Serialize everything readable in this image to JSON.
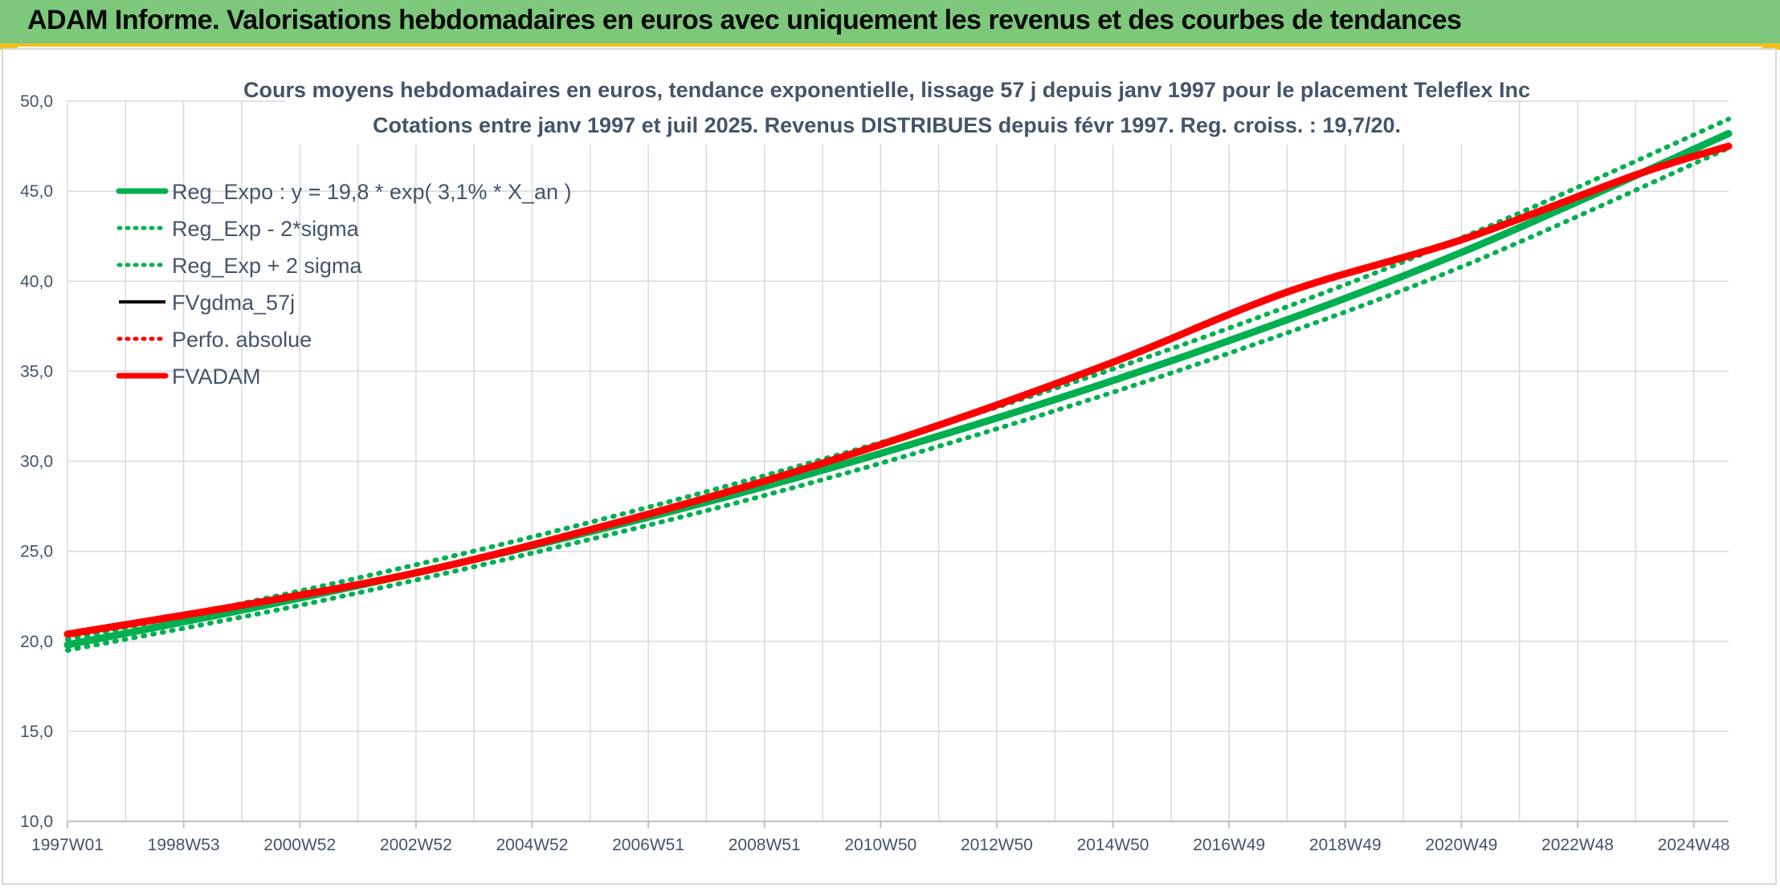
{
  "header": {
    "title": "ADAM Informe. Valorisations hebdomadaires en euros avec uniquement les revenus et des courbes de tendances"
  },
  "colors": {
    "header_bg": "#7dc87a",
    "accent": "#f0c020",
    "reg_expo": "#00b050",
    "fvadam": "#ff0000",
    "fvgdma": "#000000",
    "text": "#44546a",
    "grid": "#d9d9d9"
  },
  "chart_data": {
    "type": "line",
    "title_line1": "Cours moyens hebdomadaires en euros, tendance exponentielle, lissage 57 j depuis janv 1997 pour le placement Teleflex Inc",
    "title_line2": "Cotations entre janv 1997 et juil 2025. Revenus DISTRIBUES depuis févr 1997. Reg. croiss. : 19,7/20.",
    "ylim": [
      10,
      50
    ],
    "xlim": [
      1997.0,
      2025.6
    ],
    "y_ticks": [
      "10,0",
      "15,0",
      "20,0",
      "25,0",
      "30,0",
      "35,0",
      "40,0",
      "45,0",
      "50,0"
    ],
    "x_tick_labels": [
      "1997W01",
      "1998W53",
      "2000W52",
      "2002W52",
      "2004W52",
      "2006W51",
      "2008W51",
      "2010W50",
      "2012W50",
      "2014W50",
      "2016W49",
      "2018W49",
      "2020W49",
      "2022W48",
      "2024W48"
    ],
    "x_tick_years": [
      1997.0,
      1999.0,
      2001.0,
      2003.0,
      2005.0,
      2007.0,
      2009.0,
      2011.0,
      2013.0,
      2015.0,
      2017.0,
      2019.0,
      2021.0,
      2023.0,
      2025.0
    ],
    "grid": true,
    "legend_position": "top-left",
    "series": [
      {
        "name": "Reg_Expo : y = 19,8 * exp( 3,1% *  X_an )",
        "style": "solid-thick",
        "color": "#00b050",
        "x": [
          1997.0,
          2001.0,
          2005.0,
          2009.0,
          2013.0,
          2017.0,
          2021.0,
          2025.6
        ],
        "y": [
          19.8,
          22.4,
          25.3,
          28.6,
          32.4,
          36.7,
          41.6,
          48.2
        ]
      },
      {
        "name": "Reg_Exp - 2*sigma",
        "style": "dotted",
        "color": "#00b050",
        "x": [
          1997.0,
          2001.0,
          2005.0,
          2009.0,
          2013.0,
          2017.0,
          2021.0,
          2025.6
        ],
        "y": [
          19.5,
          22.0,
          24.9,
          28.1,
          31.8,
          36.0,
          40.8,
          47.4
        ]
      },
      {
        "name": "Reg_Exp + 2 sigma",
        "style": "dotted",
        "color": "#00b050",
        "x": [
          1997.0,
          2001.0,
          2005.0,
          2009.0,
          2013.0,
          2017.0,
          2021.0,
          2025.6
        ],
        "y": [
          20.1,
          22.8,
          25.8,
          29.2,
          33.0,
          37.4,
          42.4,
          49.0
        ]
      },
      {
        "name": "FVgdma_57j",
        "style": "solid",
        "color": "#000000",
        "x": [
          1997.0,
          2000.0,
          2003.0,
          2006.0,
          2009.0,
          2012.0,
          2015.0,
          2018.0,
          2021.0,
          2024.0,
          2025.6
        ],
        "y": [
          20.4,
          22.0,
          23.8,
          26.2,
          28.9,
          32.0,
          35.5,
          39.4,
          42.3,
          45.9,
          47.5
        ]
      },
      {
        "name": "Perfo. absolue",
        "style": "dotted",
        "color": "#ff0000",
        "x": [
          1997.0,
          2000.0,
          2003.0,
          2006.0,
          2009.0,
          2012.0,
          2015.0,
          2018.0,
          2021.0,
          2024.0,
          2025.6
        ],
        "y": [
          20.4,
          22.0,
          23.8,
          26.2,
          28.9,
          32.0,
          35.5,
          39.4,
          42.3,
          45.9,
          47.5
        ]
      },
      {
        "name": "FVADAM",
        "style": "solid-thick",
        "color": "#ff0000",
        "x": [
          1997.0,
          2000.0,
          2003.0,
          2006.0,
          2009.0,
          2012.0,
          2015.0,
          2018.0,
          2021.0,
          2024.0,
          2025.6
        ],
        "y": [
          20.4,
          22.0,
          23.8,
          26.2,
          28.9,
          32.0,
          35.5,
          39.4,
          42.3,
          45.9,
          47.5
        ]
      }
    ]
  }
}
